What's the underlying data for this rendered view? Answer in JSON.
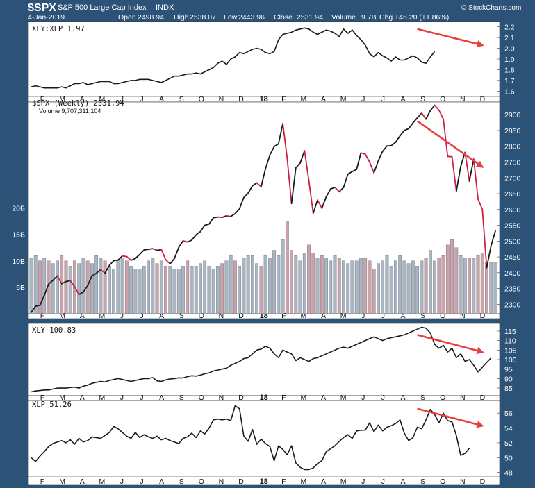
{
  "header": {
    "symbol": "$SPX",
    "name": "S&P 500 Large Cap Index",
    "exchange": "INDX",
    "date": "4-Jan-2019",
    "open_label": "Open",
    "open": "2498.94",
    "high_label": "High",
    "high": "2538.07",
    "low_label": "Low",
    "low": "2443.96",
    "close_label": "Close",
    "close": "2531.94",
    "volume_label": "Volume",
    "volume": "9.7B",
    "chg_label": "Chg",
    "chg": "+46.20 (+1.86%)",
    "watermark": "© StockCharts.com"
  },
  "colors": {
    "background": "#2c5278",
    "panel": "#ffffff",
    "line": "#1a1a1a",
    "down": "#cc1f3f",
    "arrow": "#e8413d",
    "vol_up": "#a9b5c3",
    "vol_down": "#c9a2ac"
  },
  "x_axis": {
    "labels": [
      "F",
      "M",
      "A",
      "M",
      "J",
      "J",
      "A",
      "S",
      "O",
      "N",
      "D",
      "18",
      "F",
      "M",
      "A",
      "M",
      "J",
      "J",
      "A",
      "S",
      "O",
      "N",
      "D"
    ],
    "bold_label": "18"
  },
  "chart_data": [
    {
      "type": "line",
      "legend": "XLY:XLP 1.97",
      "ylim": [
        1.55,
        2.25
      ],
      "yticks": [
        1.6,
        1.7,
        1.8,
        1.9,
        2.0,
        2.1,
        2.2
      ],
      "y_decimals": 1,
      "values": [
        1.64,
        1.65,
        1.64,
        1.63,
        1.63,
        1.63,
        1.63,
        1.64,
        1.63,
        1.65,
        1.67,
        1.67,
        1.68,
        1.66,
        1.67,
        1.68,
        1.69,
        1.69,
        1.69,
        1.67,
        1.67,
        1.68,
        1.69,
        1.7,
        1.7,
        1.71,
        1.71,
        1.71,
        1.7,
        1.69,
        1.68,
        1.7,
        1.72,
        1.74,
        1.74,
        1.75,
        1.76,
        1.76,
        1.77,
        1.76,
        1.78,
        1.8,
        1.82,
        1.86,
        1.88,
        1.85,
        1.9,
        1.92,
        1.96,
        1.95,
        1.97,
        1.99,
        2.0,
        1.99,
        1.96,
        1.95,
        1.97,
        2.08,
        2.13,
        2.14,
        2.15,
        2.17,
        2.18,
        2.19,
        2.18,
        2.15,
        2.13,
        2.15,
        2.17,
        2.16,
        2.14,
        2.11,
        2.18,
        2.14,
        2.17,
        2.12,
        2.08,
        2.03,
        1.95,
        1.92,
        1.96,
        1.93,
        1.91,
        1.88,
        1.92,
        1.89,
        1.89,
        1.91,
        1.93,
        1.91,
        1.87,
        1.86,
        1.92,
        1.97
      ],
      "colored": false,
      "arrow": {
        "from": [
          89,
          2.18
        ],
        "to": [
          104,
          2.03
        ]
      }
    },
    {
      "type": "line",
      "legend": "$SPX (Weekly) 2531.94",
      "legend2": "Volume 9,707,311,104",
      "ylim": [
        2270,
        2940
      ],
      "yticks": [
        2300,
        2350,
        2400,
        2450,
        2500,
        2550,
        2600,
        2650,
        2700,
        2750,
        2800,
        2850,
        2900
      ],
      "y_decimals": 0,
      "values": [
        2275,
        2294,
        2297,
        2328,
        2364,
        2376,
        2390,
        2365,
        2372,
        2375,
        2355,
        2331,
        2339,
        2359,
        2390,
        2398,
        2410,
        2399,
        2423,
        2438,
        2440,
        2453,
        2451,
        2439,
        2445,
        2458,
        2472,
        2474,
        2476,
        2471,
        2473,
        2441,
        2428,
        2445,
        2480,
        2501,
        2497,
        2503,
        2520,
        2530,
        2550,
        2554,
        2574,
        2576,
        2575,
        2580,
        2578,
        2587,
        2602,
        2638,
        2652,
        2675,
        2684,
        2672,
        2729,
        2772,
        2799,
        2808,
        2872,
        2762,
        2619,
        2732,
        2747,
        2786,
        2691,
        2588,
        2630,
        2604,
        2640,
        2665,
        2670,
        2656,
        2670,
        2712,
        2720,
        2727,
        2779,
        2775,
        2750,
        2716,
        2754,
        2784,
        2801,
        2802,
        2813,
        2833,
        2850,
        2856,
        2874,
        2890,
        2905,
        2886,
        2913,
        2930,
        2914,
        2886,
        2768,
        2767,
        2658,
        2736,
        2781,
        2690,
        2760,
        2633,
        2600,
        2416,
        2485,
        2532
      ],
      "colored": true,
      "volume": {
        "ylim": [
          0,
          40
        ],
        "yticks": [
          5,
          10,
          15,
          20
        ],
        "tick_labels": [
          "5B",
          "10B",
          "15B",
          "20B"
        ],
        "values": [
          10.5,
          11,
          10,
          10.5,
          10,
          9.5,
          10,
          11,
          10,
          9,
          10,
          9.5,
          10.5,
          10,
          9.5,
          11,
          10.5,
          10,
          9,
          8.5,
          10,
          10.5,
          10,
          9,
          8.5,
          8.5,
          9,
          10,
          10.5,
          9.5,
          10,
          9,
          9,
          8.5,
          8.5,
          9,
          10,
          9,
          9,
          9.5,
          10,
          9,
          8.5,
          9,
          9.5,
          10,
          11,
          10,
          9,
          10.5,
          11,
          11,
          9.5,
          9,
          11,
          10.5,
          12,
          11,
          14,
          17.5,
          12,
          11,
          10,
          11.5,
          13,
          11.5,
          10.5,
          11,
          10.5,
          10,
          11,
          10.5,
          10,
          9.5,
          10,
          10,
          10.5,
          10.5,
          10,
          8.5,
          9.5,
          10,
          11,
          9,
          10,
          11,
          10,
          9.5,
          10,
          9,
          10,
          10.5,
          12,
          10,
          10.5,
          11,
          13,
          14,
          12.5,
          11,
          10.5,
          10.5,
          10.5,
          11,
          11.5,
          9.7,
          9.7,
          9.7
        ],
        "down": [
          false,
          false,
          true,
          false,
          true,
          false,
          false,
          true,
          true,
          false,
          true,
          false,
          false,
          true,
          false,
          false,
          false,
          true,
          false,
          false,
          false,
          false,
          true,
          false,
          false,
          false,
          false,
          false,
          false,
          true,
          false,
          true,
          false,
          false,
          false,
          false,
          true,
          false,
          false,
          false,
          false,
          false,
          false,
          false,
          true,
          false,
          false,
          true,
          false,
          false,
          false,
          false,
          false,
          true,
          false,
          false,
          false,
          false,
          false,
          true,
          true,
          false,
          false,
          false,
          true,
          true,
          false,
          true,
          false,
          false,
          false,
          true,
          false,
          false,
          false,
          false,
          false,
          true,
          true,
          true,
          false,
          false,
          false,
          false,
          false,
          false,
          false,
          false,
          false,
          false,
          false,
          true,
          false,
          false,
          true,
          true,
          true,
          true,
          true,
          false,
          false,
          true,
          false,
          true,
          true,
          true,
          false,
          false
        ]
      },
      "arrow": {
        "from": [
          89,
          2880
        ],
        "to": [
          104,
          2735
        ]
      }
    },
    {
      "type": "line",
      "legend": "XLY 100.83",
      "ylim": [
        81,
        119
      ],
      "yticks": [
        85,
        90,
        95,
        100,
        105,
        110,
        115
      ],
      "y_decimals": 0,
      "values": [
        83,
        83.5,
        83.7,
        84,
        84,
        84.5,
        85,
        85,
        85,
        85.3,
        85.5,
        85,
        86,
        86.5,
        87.5,
        88,
        88.5,
        88.2,
        89,
        89.5,
        90,
        89.5,
        89,
        88.5,
        89,
        89.5,
        90,
        90,
        90.5,
        88.8,
        88.5,
        89.3,
        89.8,
        90,
        90.4,
        90.3,
        91,
        91.5,
        91.3,
        91.8,
        92.5,
        93,
        94,
        94.5,
        95,
        95.5,
        97,
        98,
        99,
        100.5,
        101,
        103,
        105,
        105.5,
        107,
        106,
        103,
        101,
        105,
        104,
        103,
        99.5,
        101,
        100,
        99,
        100.5,
        101,
        102,
        103,
        104,
        105,
        106,
        106.5,
        106,
        107,
        108,
        109,
        110,
        111,
        112,
        111,
        110,
        111,
        111.5,
        112,
        112.5,
        113,
        114,
        115,
        116,
        117,
        116.5,
        114,
        108,
        106,
        107.5,
        104,
        106,
        101,
        103,
        99,
        100,
        97,
        93.5,
        96,
        98.5,
        100.83
      ],
      "colored": false,
      "arrow": {
        "from": [
          89,
          113
        ],
        "to": [
          104,
          104
        ]
      }
    },
    {
      "type": "line",
      "legend": "XLP 51.26",
      "ylim": [
        47.5,
        57.7
      ],
      "yticks": [
        48,
        50,
        52,
        54,
        56
      ],
      "y_decimals": 0,
      "values": [
        50,
        49.5,
        50.2,
        50.8,
        51.5,
        51.9,
        52.1,
        52.3,
        52,
        52.4,
        51.8,
        52.6,
        52.1,
        52.3,
        52.8,
        52.7,
        52.6,
        53,
        53.4,
        54.2,
        53.9,
        53.4,
        52.9,
        52.6,
        53.4,
        52.7,
        53.1,
        52.8,
        52.6,
        52.9,
        52.4,
        52.6,
        52.3,
        52.1,
        51.9,
        52.6,
        52.8,
        53.3,
        52.7,
        53.6,
        53.2,
        54,
        55.1,
        55.2,
        55.1,
        55.2,
        55,
        57,
        56.6,
        52.9,
        52.2,
        53.8,
        51.8,
        52.5,
        51.9,
        51.5,
        49.6,
        51.6,
        51.1,
        50.4,
        51.6,
        49.3,
        48.7,
        48.4,
        48.4,
        48.6,
        49.2,
        49.6,
        50.8,
        51.2,
        51.6,
        52.2,
        52.7,
        53.1,
        52.6,
        53.6,
        53.7,
        53.7,
        54.7,
        53.5,
        54.4,
        53.6,
        54.1,
        54.3,
        54.6,
        55.1,
        53.3,
        52.3,
        52.7,
        54.1,
        53.9,
        55.1,
        56.5,
        55.8,
        54.7,
        56,
        55,
        54.8,
        53,
        50.3,
        50.6,
        51.26
      ],
      "colored": false,
      "arrow": {
        "from": [
          89,
          56.6
        ],
        "to": [
          104,
          54.3
        ]
      }
    }
  ]
}
